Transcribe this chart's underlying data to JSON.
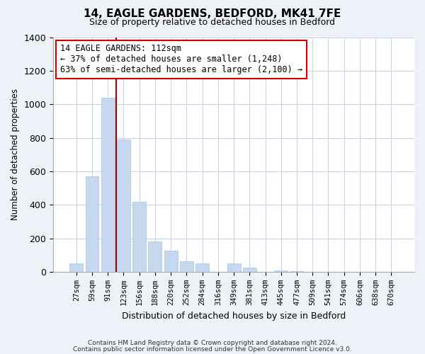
{
  "title": "14, EAGLE GARDENS, BEDFORD, MK41 7FE",
  "subtitle": "Size of property relative to detached houses in Bedford",
  "xlabel": "Distribution of detached houses by size in Bedford",
  "ylabel": "Number of detached properties",
  "bar_color": "#c5d8f0",
  "bar_edge_color": "#a8c4e0",
  "vline_color": "#aa0000",
  "vline_x_index": 2.55,
  "categories": [
    "27sqm",
    "59sqm",
    "91sqm",
    "123sqm",
    "156sqm",
    "188sqm",
    "220sqm",
    "252sqm",
    "284sqm",
    "316sqm",
    "349sqm",
    "381sqm",
    "413sqm",
    "445sqm",
    "477sqm",
    "509sqm",
    "541sqm",
    "574sqm",
    "606sqm",
    "638sqm",
    "670sqm"
  ],
  "values": [
    50,
    570,
    1040,
    790,
    420,
    180,
    125,
    65,
    50,
    0,
    50,
    25,
    0,
    10,
    5,
    0,
    0,
    0,
    0,
    0,
    0
  ],
  "ylim": [
    0,
    1400
  ],
  "yticks": [
    0,
    200,
    400,
    600,
    800,
    1000,
    1200,
    1400
  ],
  "annotation_title": "14 EAGLE GARDENS: 112sqm",
  "annotation_line1": "← 37% of detached houses are smaller (1,248)",
  "annotation_line2": "63% of semi-detached houses are larger (2,100) →",
  "footer_line1": "Contains HM Land Registry data © Crown copyright and database right 2024.",
  "footer_line2": "Contains public sector information licensed under the Open Government Licence v3.0.",
  "background_color": "#eef2f8",
  "plot_bg_color": "#ffffff",
  "grid_color": "#c8d4e8"
}
